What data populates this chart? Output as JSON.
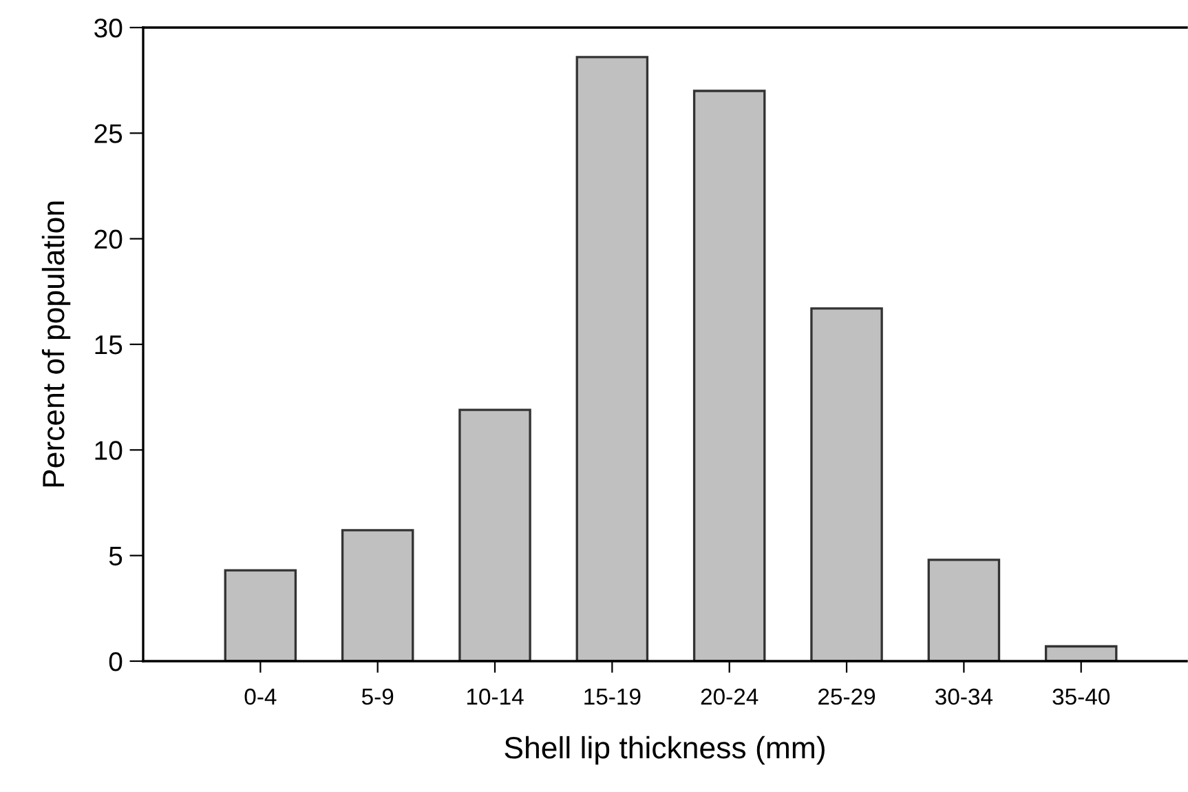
{
  "chart_data": {
    "type": "bar",
    "xlabel": "Shell lip thickness (mm)",
    "ylabel": "Percent of population",
    "categories": [
      "0-4",
      "5-9",
      "10-14",
      "15-19",
      "20-24",
      "25-29",
      "30-34",
      "35-40"
    ],
    "values": [
      4.3,
      6.2,
      11.9,
      28.6,
      27.0,
      16.7,
      4.8,
      0.7
    ],
    "color": "#c0c0c0",
    "ylim": [
      0,
      30
    ],
    "yticks": [
      0,
      5,
      10,
      15,
      20,
      25,
      30
    ],
    "grid": false
  }
}
